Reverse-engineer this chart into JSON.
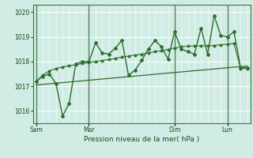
{
  "bg_color": "#d0ece4",
  "grid_white_color": "#ffffff",
  "grid_light_color": "#b8ddd0",
  "line_color": "#2d6e2d",
  "xlabel": "Pression niveau de la mer( hPa )",
  "ylim": [
    1015.5,
    1020.3
  ],
  "yticks": [
    1016,
    1017,
    1018,
    1019,
    1020
  ],
  "day_labels": [
    "Sam",
    "Mar",
    "Dim",
    "Lun"
  ],
  "day_positions": [
    0,
    8,
    21,
    29
  ],
  "xlim": [
    -0.5,
    32.5
  ],
  "s1x": [
    0,
    1,
    2,
    3,
    4,
    5,
    6,
    7,
    8,
    9,
    10,
    11,
    12,
    13,
    14,
    15,
    16,
    17,
    18,
    19,
    20,
    21,
    22,
    23,
    24,
    25,
    26,
    27,
    28,
    29,
    30,
    31,
    32
  ],
  "s1y": [
    1017.2,
    1017.4,
    1017.5,
    1017.1,
    1015.8,
    1016.3,
    1017.9,
    1018.0,
    1018.0,
    1018.75,
    1018.35,
    1018.3,
    1018.55,
    1018.85,
    1017.45,
    1017.65,
    1018.05,
    1018.5,
    1018.85,
    1018.6,
    1018.1,
    1019.2,
    1018.5,
    1018.4,
    1018.3,
    1019.35,
    1018.3,
    1019.85,
    1019.05,
    1019.0,
    1019.2,
    1017.75,
    1017.75
  ],
  "s2x": [
    0,
    1,
    2,
    3,
    4,
    5,
    6,
    7,
    8,
    9,
    10,
    11,
    12,
    13,
    14,
    15,
    16,
    17,
    18,
    19,
    20,
    21,
    22,
    23,
    24,
    25,
    26,
    27,
    28,
    29,
    30,
    31,
    32
  ],
  "s2y": [
    1017.2,
    1017.45,
    1017.62,
    1017.72,
    1017.78,
    1017.83,
    1017.87,
    1017.92,
    1017.96,
    1018.0,
    1018.04,
    1018.08,
    1018.12,
    1018.18,
    1018.22,
    1018.26,
    1018.3,
    1018.35,
    1018.4,
    1018.44,
    1018.49,
    1018.55,
    1018.6,
    1018.62,
    1018.63,
    1018.64,
    1018.64,
    1018.65,
    1018.68,
    1018.7,
    1018.73,
    1017.72,
    1017.72
  ],
  "trend_x": [
    0,
    32
  ],
  "trend_y": [
    1017.05,
    1017.82
  ]
}
